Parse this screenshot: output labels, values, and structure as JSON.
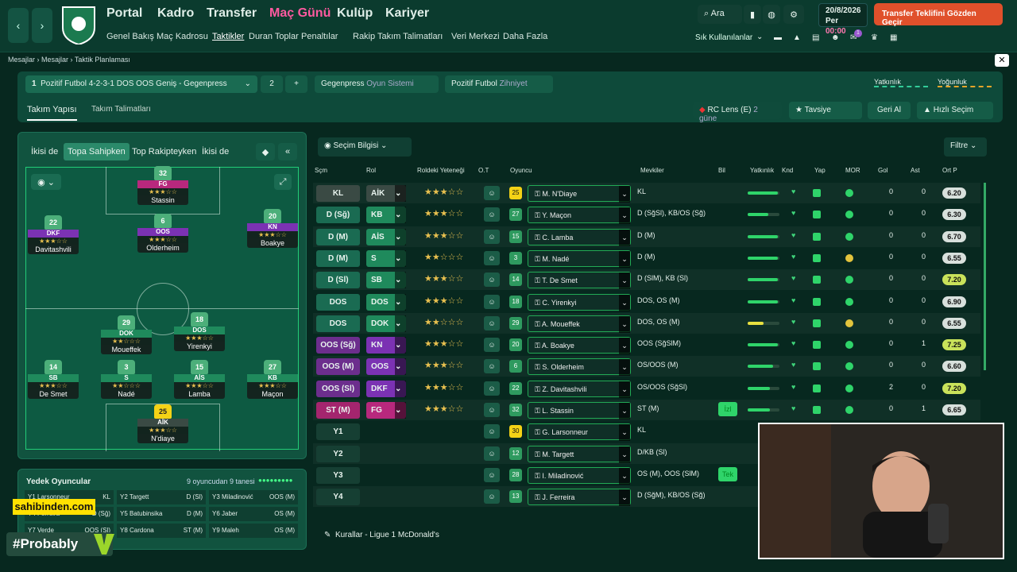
{
  "topbar": {
    "main_nav": [
      "Portal",
      "Kadro",
      "Transfer",
      "Maç Günü",
      "Kulüp",
      "Kariyer"
    ],
    "sub_nav": [
      "Genel Bakış",
      "Maç Kadrosu",
      "Taktikler",
      "Duran Toplar",
      "Penaltılar",
      "Rakip Takım Talimatları",
      "Veri Merkezi",
      "Daha Fazla"
    ],
    "search_label": "Ara",
    "shortcuts_label": "Sık Kullanılanlar",
    "badge_count": "1",
    "date_line1": "20/8/2026",
    "date_line2": "Per",
    "time": "00:00",
    "transfer_button": "Transfer Teklifini Gözden Geçir"
  },
  "breadcrumb": [
    "Mesajlar",
    "Mesajlar",
    "Taktik Planlaması"
  ],
  "tactic_panel": {
    "tactic_number": "1",
    "tactic_name": "Pozitif Futbol 4-2-3-1 DOS OOS Geniş - Gegenpress",
    "slot2": "2",
    "add": "+",
    "system_value": "Gegenpress",
    "system_label": "Oyun Sistemi",
    "mentality_value": "Pozitif Futbol",
    "mentality_label": "Zihniyet",
    "familiarity_label": "Yatkınlık",
    "intensity_label": "Yoğunluk",
    "tab_structure": "Takım Yapısı",
    "tab_instructions": "Takım Talimatları",
    "opponent": "RC Lens (E)",
    "opponent_days": "2 güne",
    "advice": "Tavsiye",
    "revert": "Geri Al",
    "quick_pick": "Hızlı Seçim"
  },
  "pitch_tabs": [
    "İkisi de",
    "Topa Sahipken",
    "Top Rakipteyken",
    "İkisi de"
  ],
  "pitch_players": [
    {
      "num": "32",
      "pos": "FG",
      "name": "Stassin",
      "stars": "★★★☆☆"
    },
    {
      "num": "22",
      "pos": "DKF",
      "name": "Davitashvili",
      "stars": "★★★☆☆"
    },
    {
      "num": "6",
      "pos": "OOS",
      "name": "Olderheim",
      "stars": "★★★☆☆"
    },
    {
      "num": "20",
      "pos": "KN",
      "name": "Boakye",
      "stars": "★★★☆☆"
    },
    {
      "num": "29",
      "pos": "DOK",
      "name": "Moueffek",
      "stars": "★★☆☆☆"
    },
    {
      "num": "18",
      "pos": "DOS",
      "name": "Yirenkyi",
      "stars": "★★★☆☆"
    },
    {
      "num": "14",
      "pos": "SB",
      "name": "De Smet",
      "stars": "★★★☆☆"
    },
    {
      "num": "3",
      "pos": "S",
      "name": "Nadé",
      "stars": "★★☆☆☆"
    },
    {
      "num": "15",
      "pos": "AİS",
      "name": "Lamba",
      "stars": "★★★☆☆"
    },
    {
      "num": "27",
      "pos": "KB",
      "name": "Maçon",
      "stars": "★★★☆☆"
    },
    {
      "num": "25",
      "pos": "AİK",
      "name": "N'diaye",
      "stars": "★★★☆☆"
    }
  ],
  "subs": {
    "title": "Yedek Oyuncular",
    "count": "9 oyuncudan 9 tanesi",
    "cells": [
      [
        "Y1",
        "Larsonneur",
        "KL"
      ],
      [
        "Y2",
        "Targett",
        "D (Sl)"
      ],
      [
        "Y3",
        "Miladinović",
        "OOS (M)"
      ],
      [
        "Y4",
        "Ferreira",
        "D (Sğ)"
      ],
      [
        "Y5",
        "Batubinsika",
        "D (M)"
      ],
      [
        "Y6",
        "Jaber",
        "OS (M)"
      ],
      [
        "Y7",
        "Verde",
        "OOS (Sl)"
      ],
      [
        "Y8",
        "Cardona",
        "ST (M)"
      ],
      [
        "Y9",
        "Maleh",
        "OS (M)"
      ]
    ]
  },
  "table": {
    "selection_info": "Seçim Bilgisi",
    "filter": "Filtre",
    "headers": [
      "Sçm",
      "Rol",
      "Roldeki Yeteneği",
      "O.T",
      "Oyuncu",
      "Mevkiler",
      "Bil",
      "Yatkınlık",
      "Knd",
      "Yap",
      "MOR",
      "Gol",
      "Ast",
      "Ort P"
    ],
    "rows": [
      {
        "sel": "KL",
        "role": "AİK",
        "stars": "★★★☆☆",
        "num": "25",
        "name": "M. N'Diaye",
        "pos": "KL",
        "gol": "0",
        "ast": "0",
        "rating": "6.20",
        "fam": 0.95
      },
      {
        "sel": "D (Sğ)",
        "role": "KB",
        "stars": "★★★☆☆",
        "num": "27",
        "name": "Y. Maçon",
        "pos": "D (SğSl), KB/OS (Sğ)",
        "gol": "0",
        "ast": "0",
        "rating": "6.30",
        "fam": 0.65
      },
      {
        "sel": "D (M)",
        "role": "AİS",
        "stars": "★★★☆☆",
        "num": "15",
        "name": "C. Lamba",
        "pos": "D (M)",
        "gol": "0",
        "ast": "0",
        "rating": "6.70",
        "fam": 0.95
      },
      {
        "sel": "D (M)",
        "role": "S",
        "stars": "★★☆☆☆",
        "num": "3",
        "name": "M. Nadé",
        "pos": "D (M)",
        "gol": "0",
        "ast": "0",
        "rating": "6.55",
        "fam": 0.95
      },
      {
        "sel": "D (Sl)",
        "role": "SB",
        "stars": "★★★☆☆",
        "num": "14",
        "name": "T. De Smet",
        "pos": "D (SlM), KB (Sl)",
        "gol": "0",
        "ast": "0",
        "rating": "7.20",
        "fam": 0.95
      },
      {
        "sel": "DOS",
        "role": "DOS",
        "stars": "★★★☆☆",
        "num": "18",
        "name": "C. Yirenkyi",
        "pos": "DOS, OS (M)",
        "gol": "0",
        "ast": "0",
        "rating": "6.90",
        "fam": 0.95
      },
      {
        "sel": "DOS",
        "role": "DOK",
        "stars": "★★☆☆☆",
        "num": "29",
        "name": "A. Moueffek",
        "pos": "DOS, OS (M)",
        "gol": "0",
        "ast": "0",
        "rating": "6.55",
        "fam": 0.5
      },
      {
        "sel": "OOS (Sğ)",
        "role": "KN",
        "stars": "★★★☆☆",
        "num": "20",
        "name": "A. Boakye",
        "pos": "OOS (SğSlM)",
        "gol": "0",
        "ast": "1",
        "rating": "7.25",
        "fam": 0.95
      },
      {
        "sel": "OOS (M)",
        "role": "OOS",
        "stars": "★★★☆☆",
        "num": "6",
        "name": "S. Olderheim",
        "pos": "OS/OOS (M)",
        "gol": "0",
        "ast": "0",
        "rating": "6.60",
        "fam": 0.8
      },
      {
        "sel": "OOS (Sl)",
        "role": "DKF",
        "stars": "★★★☆☆",
        "num": "22",
        "name": "Z. Davitashvili",
        "pos": "OS/OOS (SğSl)",
        "gol": "2",
        "ast": "0",
        "rating": "7.20",
        "fam": 0.7
      },
      {
        "sel": "ST (M)",
        "role": "FG",
        "stars": "★★★☆☆",
        "num": "32",
        "name": "L. Stassin",
        "pos": "ST (M)",
        "gol": "0",
        "ast": "1",
        "rating": "6.65",
        "fam": 0.7,
        "bil": "İzl"
      },
      {
        "sel": "Y1",
        "num": "30",
        "name": "G. Larsonneur",
        "pos": "KL"
      },
      {
        "sel": "Y2",
        "num": "12",
        "name": "M. Targett",
        "pos": "D/KB (Sl)"
      },
      {
        "sel": "Y3",
        "num": "28",
        "name": "I. Miladinović",
        "pos": "OS (M), OOS (SlM)",
        "bil": "Tek"
      },
      {
        "sel": "Y4",
        "num": "13",
        "name": "J. Ferreira",
        "pos": "D (SğM), KB/OS (Sğ)"
      }
    ]
  },
  "footer": "Kurallar - Ligue 1 McDonald's",
  "overlay": {
    "sahibinden": "sahibinden.com",
    "probably": "#Probably"
  },
  "colors": {
    "accent": "#ff5aa0",
    "transfer": "#e0502b",
    "green": "#2fd46a",
    "gk": "#f4d216"
  }
}
